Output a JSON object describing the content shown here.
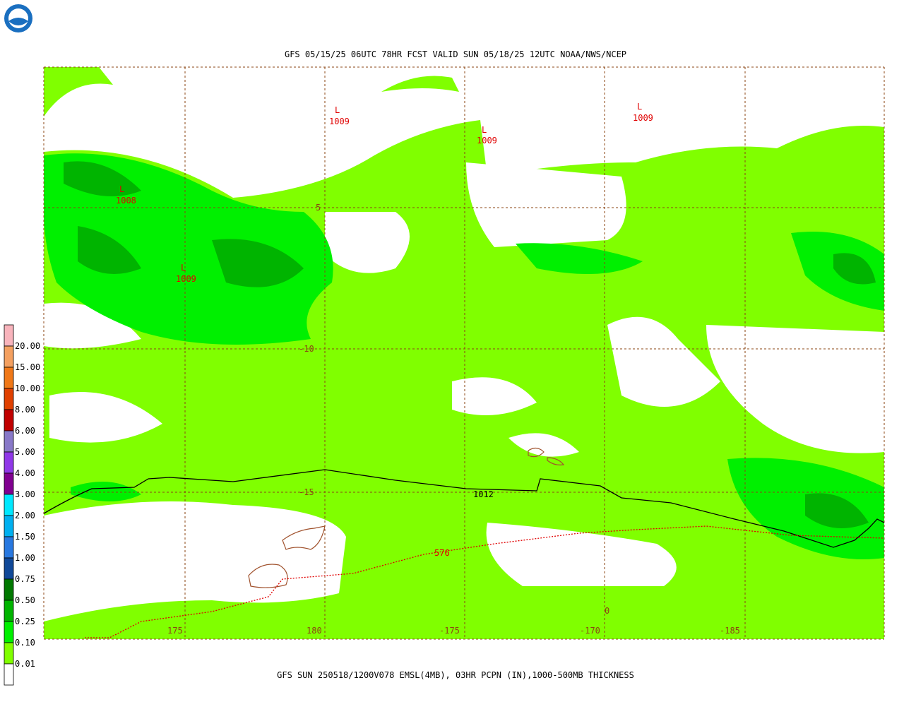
{
  "header": {
    "title": "GFS 05/15/25 06UTC 78HR FCST VALID SUN 05/18/25 12UTC NOAA/NWS/NCEP"
  },
  "footer": {
    "caption": "GFS SUN 250518/1200V078 EMSL(4MB), 03HR PCPN (IN),1000-500MB THICKNESS"
  },
  "legend": {
    "labels": [
      "20.00",
      "15.00",
      "10.00",
      "8.00",
      "6.00",
      "5.00",
      "4.00",
      "3.00",
      "2.00",
      "1.50",
      "1.00",
      "0.75",
      "0.50",
      "0.25",
      "0.10",
      "0.01"
    ],
    "colors": [
      "#f8b4bc",
      "#f4a060",
      "#f07818",
      "#e04000",
      "#c00000",
      "#8878c8",
      "#9038e8",
      "#800090",
      "#00e8ff",
      "#00b0f0",
      "#2878e0",
      "#104898",
      "#007800",
      "#00b400",
      "#00f000",
      "#80ff00",
      "#ffffff"
    ]
  },
  "map": {
    "lat_labels": [
      "5",
      "-10",
      "-15"
    ],
    "lon_labels": [
      "175",
      "180",
      "-175",
      "-170",
      "-185"
    ],
    "lows": [
      {
        "symbol": "L",
        "label": "1008"
      },
      {
        "symbol": "L",
        "label": "1009"
      },
      {
        "symbol": "L",
        "label": "1009"
      },
      {
        "symbol": "L",
        "label": "1009"
      },
      {
        "symbol": "L",
        "label": "1009"
      }
    ],
    "contour_labels": [
      "1012",
      "576",
      "0"
    ]
  }
}
